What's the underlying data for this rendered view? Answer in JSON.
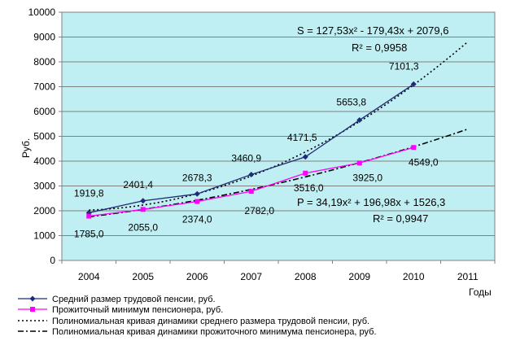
{
  "chart_data": {
    "type": "line",
    "ylabel": "Руб.",
    "xlabel": "Годы",
    "ylim": [
      0,
      10000
    ],
    "yticks": [
      "0",
      "1000",
      "2000",
      "3000",
      "4000",
      "5000",
      "6000",
      "7000",
      "8000",
      "9000",
      "10000"
    ],
    "categories": [
      "2004",
      "2005",
      "2006",
      "2007",
      "2008",
      "2009",
      "2010",
      "2011"
    ],
    "grid": true,
    "legend_position": "bottom",
    "plot_background": "#bfeff2",
    "series": [
      {
        "name": "Средний размер трудовой пенсии, руб.",
        "color": "#1f2a78",
        "marker": "diamond",
        "values": [
          1919.8,
          2401.4,
          2678.3,
          3460.9,
          4171.5,
          5653.8,
          7101.3,
          null
        ],
        "labels": [
          "1919,8",
          "2401,4",
          "2678,3",
          "3460,9",
          "4171,5",
          "5653,8",
          "7101,3",
          ""
        ]
      },
      {
        "name": "Прожиточный минимум пенсионера, руб.",
        "color": "#ff00ff",
        "marker": "square",
        "values": [
          1785.0,
          2055.0,
          2374.0,
          2782.0,
          3516.0,
          3925.0,
          4549.0,
          null
        ],
        "labels": [
          "1785,0",
          "2055,0",
          "2374,0",
          "2782,0",
          "3516,0",
          "3925,0",
          "4549,0",
          ""
        ]
      }
    ],
    "trendlines": [
      {
        "name": "Полиномиальная кривая динамики среднего размера трудовой пенсии, руб.",
        "style": "dotted",
        "coefficients": [
          127.53,
          -179.43,
          2079.6
        ],
        "equation_text": "S = 127,53x² - 179,43x + 2079,6",
        "r2_text": "R² = 0,9958"
      },
      {
        "name": "Полиномиальная кривая динамики прожиточного минимума пенсионера, руб.",
        "style": "dash-dot",
        "coefficients": [
          34.19,
          196.98,
          1526.3
        ],
        "equation_text": "P = 34,19x² + 196,98x + 1526,3",
        "r2_text": "R² = 0,9947"
      }
    ]
  }
}
